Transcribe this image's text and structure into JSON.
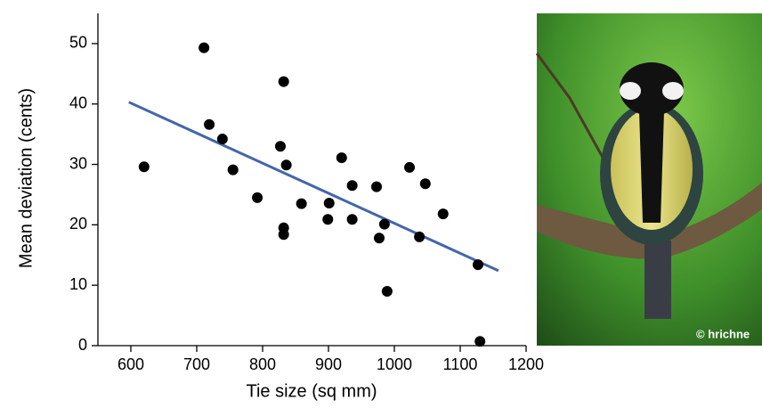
{
  "chart_data": {
    "type": "scatter",
    "xlabel": "Tie size (sq mm)",
    "ylabel": "Mean deviation (cents)",
    "xlim": [
      550,
      1200
    ],
    "ylim": [
      0,
      55
    ],
    "xticks": [
      600,
      700,
      800,
      900,
      1000,
      1100,
      1200
    ],
    "yticks": [
      0,
      10,
      20,
      30,
      40,
      50
    ],
    "series": [
      {
        "color": "#000000",
        "x": [
          620,
          711,
          719,
          739,
          755,
          792,
          827,
          832,
          832,
          832,
          836,
          859,
          899,
          901,
          920,
          936,
          936,
          973,
          977,
          985,
          989,
          1023,
          1038,
          1047,
          1074,
          1127,
          1130
        ],
        "y": [
          29.6,
          49.3,
          36.6,
          34.2,
          29.1,
          24.5,
          33.0,
          43.7,
          19.5,
          18.4,
          29.9,
          23.5,
          20.9,
          23.6,
          31.1,
          26.5,
          20.9,
          26.3,
          17.8,
          20.1,
          9.0,
          29.5,
          18.0,
          26.8,
          21.8,
          13.4,
          0.7
        ]
      }
    ],
    "trend_line": {
      "color": "#4466aa",
      "x": [
        597,
        1158
      ],
      "y": [
        40.3,
        12.4
      ]
    }
  },
  "photo": {
    "credit": "© hrichne"
  }
}
